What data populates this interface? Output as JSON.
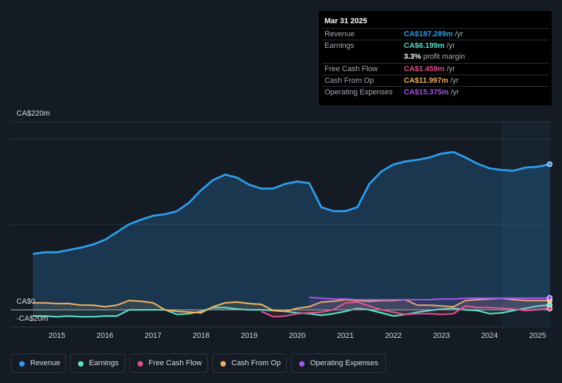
{
  "tooltip": {
    "date": "Mar 31 2025",
    "rows": [
      {
        "label": "Revenue",
        "value": "CA$187.289m",
        "unit": "/yr",
        "color": "#2e9be8"
      },
      {
        "label": "Earnings",
        "value": "CA$6.199m",
        "unit": "/yr",
        "color": "#5be2c8"
      },
      {
        "label": "",
        "value": "3.3%",
        "unit": "profit margin",
        "color": "#ffffff"
      },
      {
        "label": "Free Cash Flow",
        "value": "CA$1.459m",
        "unit": "/yr",
        "color": "#e0508a"
      },
      {
        "label": "Cash From Op",
        "value": "CA$11.997m",
        "unit": "/yr",
        "color": "#f0b060"
      },
      {
        "label": "Operating Expenses",
        "value": "CA$15.375m",
        "unit": "/yr",
        "color": "#a454e8"
      }
    ]
  },
  "legend": [
    {
      "label": "Revenue",
      "color": "#2e9be8"
    },
    {
      "label": "Earnings",
      "color": "#5be2c8"
    },
    {
      "label": "Free Cash Flow",
      "color": "#e0508a"
    },
    {
      "label": "Cash From Op",
      "color": "#f0b060"
    },
    {
      "label": "Operating Expenses",
      "color": "#a454e8"
    }
  ],
  "chart_data": {
    "type": "area",
    "title": "",
    "xlabel": "",
    "ylabel": "",
    "y_axis_labels": [
      "CA$220m",
      "CA$0",
      "-CA$20m"
    ],
    "ylim": [
      -20,
      220
    ],
    "xlim": [
      2014.5,
      2025.25
    ],
    "x_ticks": [
      "2015",
      "2016",
      "2017",
      "2018",
      "2019",
      "2020",
      "2021",
      "2022",
      "2023",
      "2024",
      "2025"
    ],
    "highlight_from": 2024.25,
    "series": [
      {
        "name": "Revenue",
        "color": "#2e9be8",
        "x": [
          2014.5,
          2014.75,
          2015.0,
          2015.25,
          2015.5,
          2015.75,
          2016.0,
          2016.25,
          2016.5,
          2016.75,
          2017.0,
          2017.25,
          2017.5,
          2017.75,
          2018.0,
          2018.25,
          2018.5,
          2018.75,
          2019.0,
          2019.25,
          2019.5,
          2019.75,
          2020.0,
          2020.25,
          2020.5,
          2020.75,
          2021.0,
          2021.25,
          2021.5,
          2021.75,
          2022.0,
          2022.25,
          2022.5,
          2022.75,
          2023.0,
          2023.25,
          2023.5,
          2023.75,
          2024.0,
          2024.25,
          2024.5,
          2024.75,
          2025.0,
          2025.25
        ],
        "values": [
          72,
          74,
          74,
          77,
          80,
          84,
          90,
          100,
          110,
          116,
          121,
          123,
          127,
          138,
          154,
          167,
          174,
          170,
          161,
          156,
          156,
          162,
          165,
          163,
          132,
          127,
          127,
          132,
          162,
          178,
          187,
          191,
          193,
          196,
          201,
          203,
          196,
          188,
          182,
          180,
          179,
          183,
          184,
          187.289
        ]
      },
      {
        "name": "Earnings",
        "color": "#5be2c8",
        "x": [
          2014.5,
          2014.75,
          2015.0,
          2015.25,
          2015.5,
          2015.75,
          2016.0,
          2016.25,
          2016.5,
          2016.75,
          2017.0,
          2017.25,
          2017.5,
          2017.75,
          2018.0,
          2018.25,
          2018.5,
          2018.75,
          2019.0,
          2019.25,
          2019.5,
          2019.75,
          2020.0,
          2020.25,
          2020.5,
          2020.75,
          2021.0,
          2021.25,
          2021.5,
          2021.75,
          2022.0,
          2022.25,
          2022.5,
          2022.75,
          2023.0,
          2023.25,
          2023.5,
          2023.75,
          2024.0,
          2024.25,
          2024.5,
          2024.75,
          2025.0,
          2025.25
        ],
        "values": [
          -8,
          -8,
          -9,
          -8,
          -9,
          -9,
          -8,
          -8,
          0,
          0,
          0,
          0,
          -6,
          -5,
          -2,
          3,
          3,
          1,
          0,
          0,
          -1,
          -2,
          -4,
          -5,
          -7,
          -5,
          -2,
          2,
          0,
          -4,
          -8,
          -6,
          -3,
          -1,
          1,
          2,
          0,
          -1,
          -5,
          -4,
          -1,
          2,
          5,
          6.199
        ]
      },
      {
        "name": "Free Cash Flow",
        "color": "#e0508a",
        "x": [
          2019.25,
          2019.5,
          2019.75,
          2020.0,
          2020.25,
          2020.5,
          2020.75,
          2021.0,
          2021.25,
          2021.5,
          2021.75,
          2022.0,
          2022.25,
          2022.5,
          2022.75,
          2023.0,
          2023.25,
          2023.5,
          2023.75,
          2024.0,
          2024.25,
          2024.5,
          2024.75,
          2025.0,
          2025.25
        ],
        "values": [
          -2,
          -9,
          -8,
          -5,
          -4,
          -3,
          0,
          9,
          10,
          5,
          0,
          -3,
          -6,
          -5,
          -5,
          -6,
          -5,
          5,
          3,
          3,
          2,
          1,
          -1,
          0,
          1.459
        ]
      },
      {
        "name": "Cash From Op",
        "color": "#f0b060",
        "x": [
          2014.5,
          2014.75,
          2015.0,
          2015.25,
          2015.5,
          2015.75,
          2016.0,
          2016.25,
          2016.5,
          2016.75,
          2017.0,
          2017.25,
          2017.5,
          2017.75,
          2018.0,
          2018.25,
          2018.5,
          2018.75,
          2019.0,
          2019.25,
          2019.5,
          2019.75,
          2020.0,
          2020.25,
          2020.5,
          2020.75,
          2021.0,
          2021.25,
          2021.5,
          2021.75,
          2022.0,
          2022.25,
          2022.5,
          2022.75,
          2023.0,
          2023.25,
          2023.5,
          2023.75,
          2024.0,
          2024.25,
          2024.5,
          2024.75,
          2025.0,
          2025.25
        ],
        "values": [
          9,
          9,
          8,
          8,
          6,
          6,
          4,
          6,
          12,
          11,
          9,
          0,
          -2,
          -3,
          -4,
          4,
          9,
          10,
          8,
          7,
          -1,
          -2,
          2,
          4,
          10,
          11,
          13,
          12,
          11,
          12,
          12,
          13,
          6,
          6,
          5,
          4,
          12,
          13,
          14,
          15,
          13,
          12,
          12,
          11.997
        ]
      },
      {
        "name": "Operating Expenses",
        "color": "#a454e8",
        "x": [
          2020.25,
          2020.5,
          2020.75,
          2021.0,
          2021.25,
          2021.5,
          2021.75,
          2022.0,
          2022.25,
          2022.5,
          2022.75,
          2023.0,
          2023.25,
          2023.5,
          2023.75,
          2024.0,
          2024.25,
          2024.5,
          2024.75,
          2025.0,
          2025.25
        ],
        "values": [
          16,
          15,
          14,
          14,
          13,
          13,
          13,
          13,
          13,
          13,
          13,
          14,
          14,
          15,
          15,
          15,
          15,
          15,
          15,
          15,
          15.375
        ]
      }
    ]
  }
}
